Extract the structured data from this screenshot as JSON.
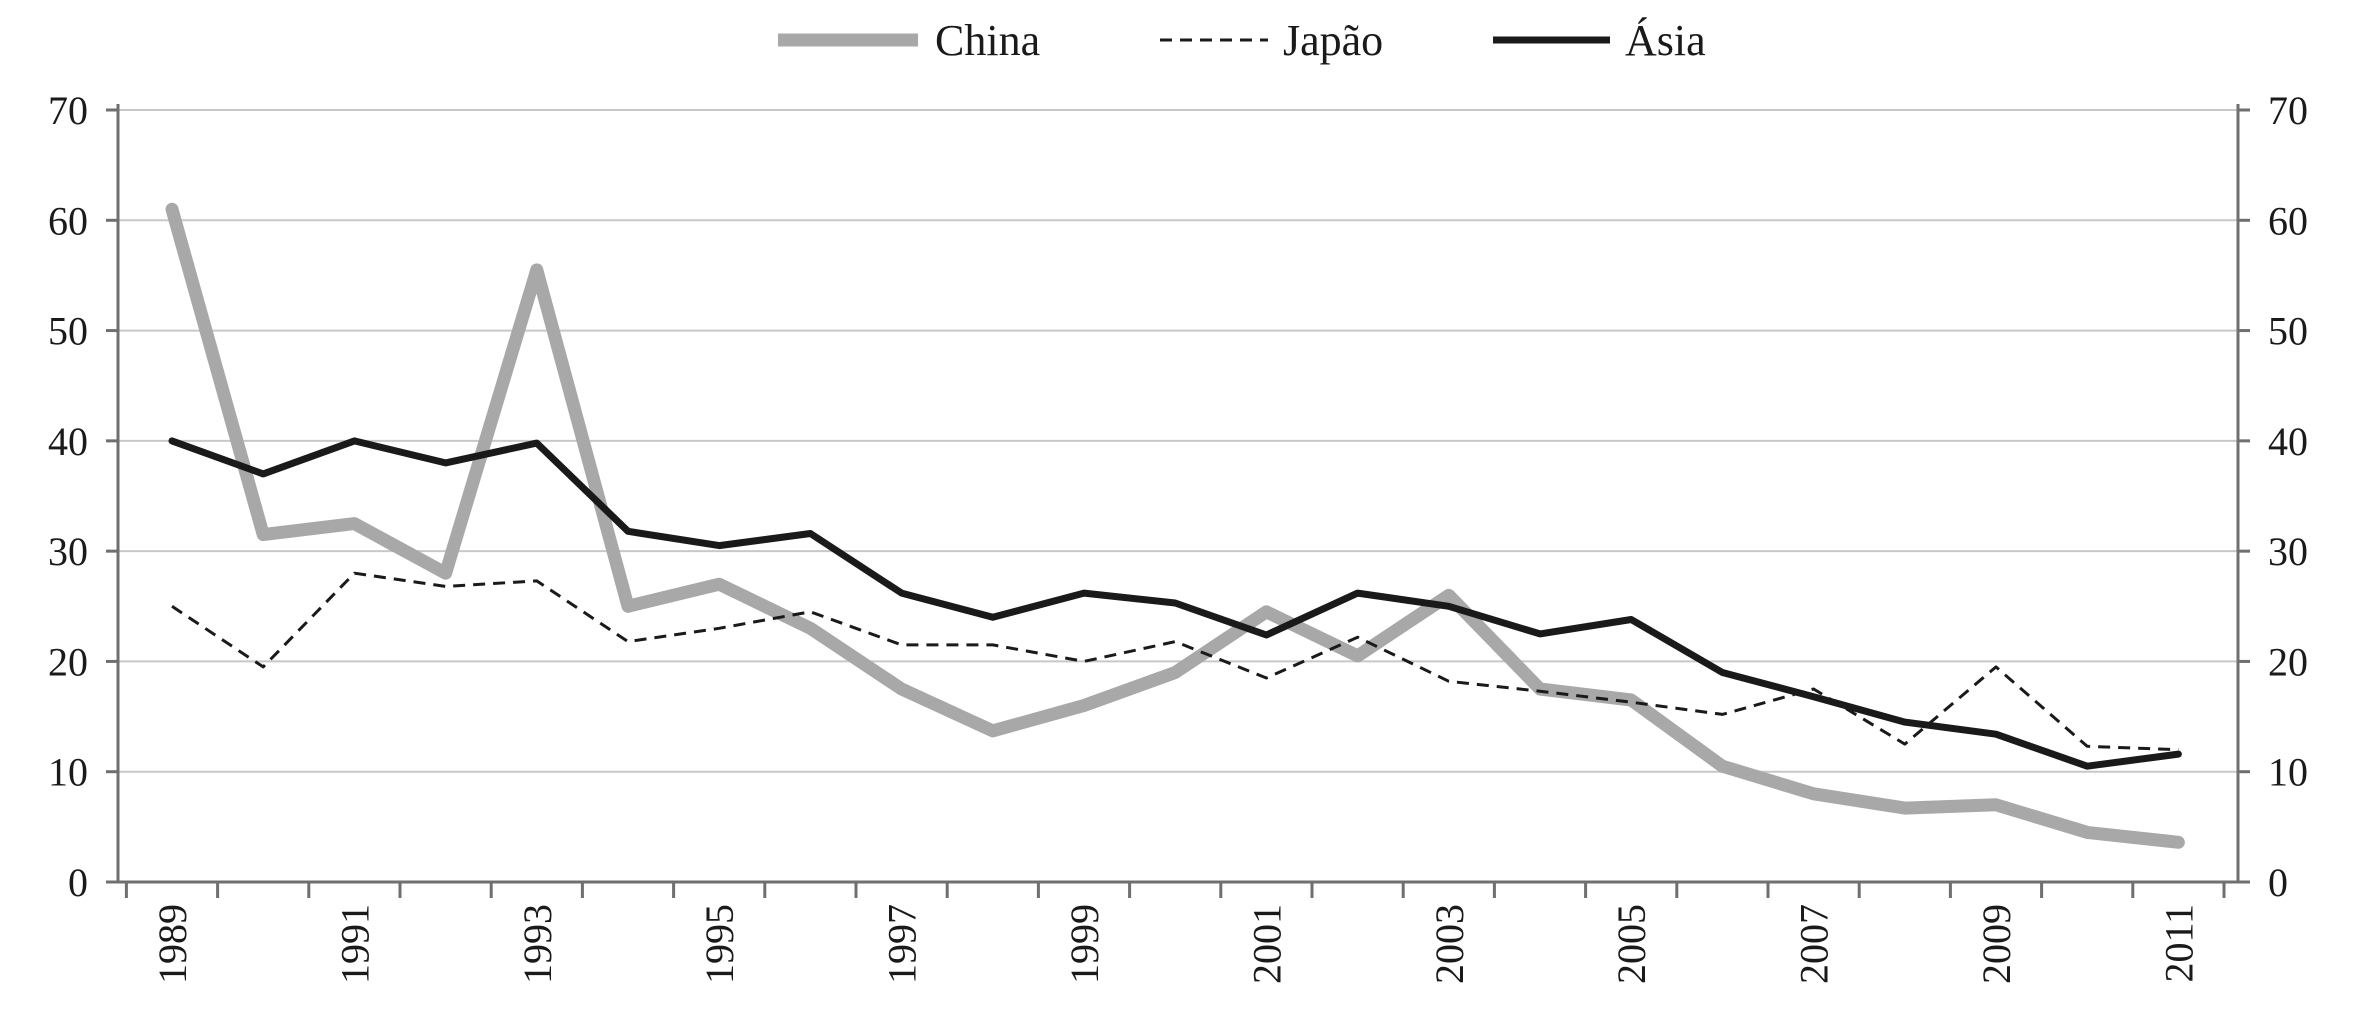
{
  "chart_data": {
    "type": "line",
    "title": "",
    "xlabel": "",
    "ylabel": "",
    "x": [
      1989,
      1990,
      1991,
      1992,
      1993,
      1994,
      1995,
      1996,
      1997,
      1998,
      1999,
      2000,
      2001,
      2002,
      2003,
      2004,
      2005,
      2006,
      2007,
      2008,
      2009,
      2010,
      2011
    ],
    "x_tick_labels": [
      "1989",
      "1991",
      "1993",
      "1995",
      "1997",
      "1999",
      "2001",
      "2003",
      "2005",
      "2007",
      "2009",
      "2011"
    ],
    "ylim": [
      0,
      70
    ],
    "y_ticks_left": [
      "0",
      "10",
      "20",
      "30",
      "40",
      "50",
      "60",
      "70"
    ],
    "y_ticks_right": [
      "0",
      "10",
      "20",
      "30",
      "40",
      "50",
      "60",
      "70"
    ],
    "grid": true,
    "legend_position": "top-center",
    "series": [
      {
        "name": "China",
        "style": "thick-solid",
        "color": "#a8a8a8",
        "values": [
          61,
          31.5,
          32.5,
          28,
          55.5,
          25,
          27,
          23,
          17.5,
          13.7,
          16,
          19,
          24.5,
          20.5,
          26,
          17.5,
          16.5,
          10.5,
          8,
          6.7,
          7,
          4.5,
          3.6
        ]
      },
      {
        "name": "Japão",
        "style": "dashed",
        "color": "#1a1a1a",
        "values": [
          25,
          19.5,
          28,
          26.8,
          27.3,
          21.8,
          23,
          24.5,
          21.5,
          21.5,
          20,
          21.8,
          18.5,
          22.2,
          18.2,
          17.3,
          16.3,
          15.2,
          17.5,
          12.5,
          19.5,
          12.3,
          12
        ]
      },
      {
        "name": "Ásia",
        "style": "solid",
        "color": "#1a1a1a",
        "values": [
          40,
          37,
          40,
          38,
          39.8,
          31.8,
          30.5,
          31.6,
          26.2,
          24,
          26.2,
          25.3,
          22.4,
          26.2,
          25,
          22.5,
          23.8,
          19,
          16.8,
          14.5,
          13.4,
          10.5,
          11.6
        ]
      }
    ]
  }
}
